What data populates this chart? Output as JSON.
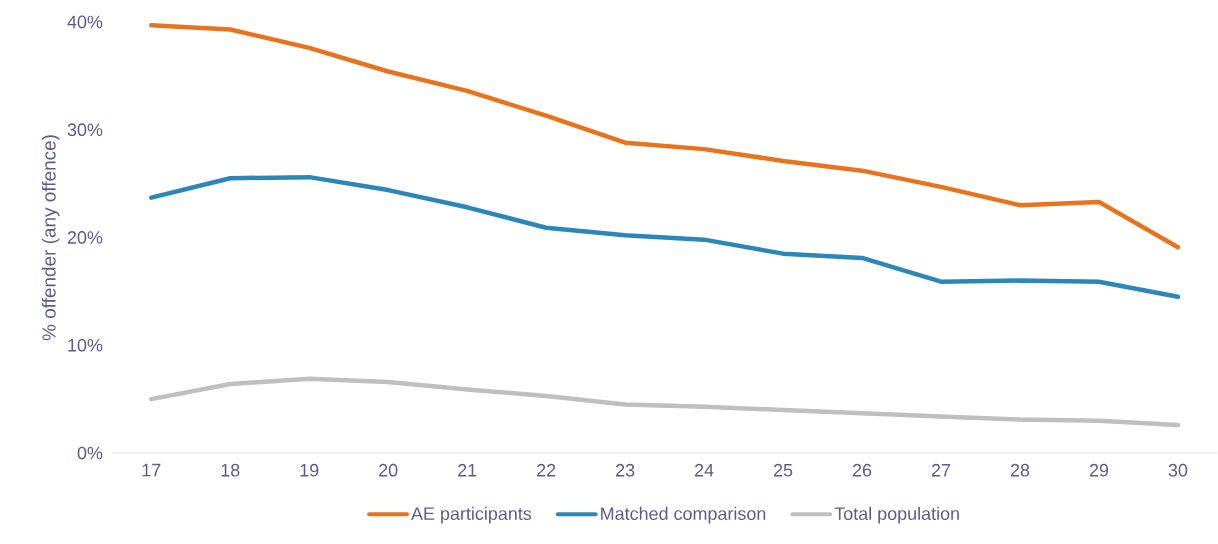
{
  "chart_data": {
    "type": "line",
    "ylabel": "% offender (any offence)",
    "categories": [
      "17",
      "18",
      "19",
      "20",
      "21",
      "22",
      "23",
      "24",
      "25",
      "26",
      "27",
      "28",
      "29",
      "30"
    ],
    "series": [
      {
        "name": "AE participants",
        "color": "#e8731c",
        "values": [
          39.7,
          39.3,
          37.6,
          35.4,
          33.6,
          31.3,
          28.8,
          28.2,
          27.1,
          26.2,
          24.7,
          23.0,
          23.3,
          19.1
        ]
      },
      {
        "name": "Matched comparison",
        "color": "#2b87b8",
        "values": [
          23.7,
          25.5,
          25.6,
          24.4,
          22.8,
          20.9,
          20.2,
          19.8,
          18.5,
          18.1,
          15.9,
          16.0,
          15.9,
          14.5
        ]
      },
      {
        "name": "Total population",
        "color": "#bfbfbf",
        "values": [
          5.0,
          6.4,
          6.9,
          6.6,
          5.9,
          5.3,
          4.5,
          4.3,
          4.0,
          3.7,
          3.4,
          3.1,
          3.0,
          2.6
        ]
      }
    ],
    "ylim": [
      0,
      40
    ],
    "yticks": [
      {
        "value": 0,
        "label": "0%"
      },
      {
        "value": 10,
        "label": "10%"
      },
      {
        "value": 20,
        "label": "20%"
      },
      {
        "value": 30,
        "label": "30%"
      },
      {
        "value": 40,
        "label": "40%"
      }
    ],
    "grid": false,
    "legend": "bottom",
    "marker": "none",
    "line_style": "solid"
  }
}
